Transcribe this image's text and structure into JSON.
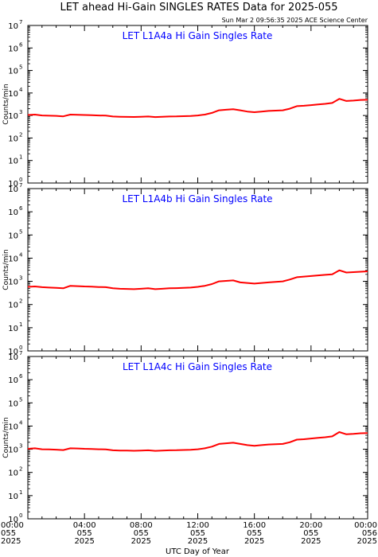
{
  "title": "LET ahead Hi-Gain SINGLES RATES Data for 2025-055",
  "timestamp": "Sun Mar  2 09:56:35 2025 ACE Science Center",
  "xlabel": "UTC Day of Year",
  "series_color": "#ff0000",
  "panel_label_color": "#0000ff",
  "chart_data": [
    {
      "type": "line",
      "title": "LET L1A4a Hi Gain Singles Rate",
      "ylabel": "Counts/min",
      "yscale": "log",
      "ylim": [
        1,
        10000000
      ],
      "xlim": [
        0,
        24
      ],
      "x_units": "hours UTC on day 055 of 2025",
      "x": [
        0,
        0.5,
        1,
        1.5,
        2,
        2.5,
        3,
        3.5,
        4,
        4.5,
        5,
        5.5,
        6,
        6.5,
        7,
        7.5,
        8,
        8.5,
        9,
        9.5,
        10,
        10.5,
        11,
        11.5,
        12,
        12.5,
        13,
        13.5,
        14,
        14.5,
        15,
        15.5,
        16,
        16.5,
        17,
        17.5,
        18,
        18.5,
        19,
        19.5,
        20,
        20.5,
        21,
        21.5,
        22,
        22.5,
        23,
        23.5,
        24
      ],
      "values": [
        1050,
        1100,
        1000,
        980,
        960,
        920,
        1100,
        1080,
        1050,
        1030,
        1000,
        990,
        900,
        880,
        870,
        860,
        880,
        900,
        850,
        880,
        900,
        910,
        930,
        950,
        1000,
        1100,
        1300,
        1700,
        1800,
        1900,
        1700,
        1500,
        1400,
        1500,
        1600,
        1650,
        1700,
        2000,
        2600,
        2700,
        2900,
        3100,
        3300,
        3600,
        5500,
        4400,
        4600,
        4900,
        5000
      ]
    },
    {
      "type": "line",
      "title": "LET L1A4b Hi Gain Singles Rate",
      "ylabel": "Counts/min",
      "yscale": "log",
      "ylim": [
        1,
        10000000
      ],
      "xlim": [
        0,
        24
      ],
      "x_units": "hours UTC on day 055 of 2025",
      "x": [
        0,
        0.5,
        1,
        1.5,
        2,
        2.5,
        3,
        3.5,
        4,
        4.5,
        5,
        5.5,
        6,
        6.5,
        7,
        7.5,
        8,
        8.5,
        9,
        9.5,
        10,
        10.5,
        11,
        11.5,
        12,
        12.5,
        13,
        13.5,
        14,
        14.5,
        15,
        15.5,
        16,
        16.5,
        17,
        17.5,
        18,
        18.5,
        19,
        19.5,
        20,
        20.5,
        21,
        21.5,
        22,
        22.5,
        23,
        23.5,
        24
      ],
      "values": [
        580,
        600,
        560,
        540,
        520,
        500,
        640,
        620,
        600,
        590,
        570,
        560,
        500,
        480,
        470,
        460,
        480,
        500,
        460,
        480,
        500,
        510,
        520,
        540,
        580,
        640,
        760,
        1000,
        1050,
        1100,
        900,
        850,
        800,
        850,
        900,
        950,
        1000,
        1200,
        1500,
        1600,
        1700,
        1800,
        1900,
        2000,
        3000,
        2400,
        2500,
        2600,
        2700
      ]
    },
    {
      "type": "line",
      "title": "LET L1A4c Hi Gain Singles Rate",
      "ylabel": "Counts/min",
      "yscale": "log",
      "ylim": [
        1,
        10000000
      ],
      "xlim": [
        0,
        24
      ],
      "x_units": "hours UTC on day 055 of 2025",
      "x": [
        0,
        0.5,
        1,
        1.5,
        2,
        2.5,
        3,
        3.5,
        4,
        4.5,
        5,
        5.5,
        6,
        6.5,
        7,
        7.5,
        8,
        8.5,
        9,
        9.5,
        10,
        10.5,
        11,
        11.5,
        12,
        12.5,
        13,
        13.5,
        14,
        14.5,
        15,
        15.5,
        16,
        16.5,
        17,
        17.5,
        18,
        18.5,
        19,
        19.5,
        20,
        20.5,
        21,
        21.5,
        22,
        22.5,
        23,
        23.5,
        24
      ],
      "values": [
        1050,
        1100,
        1000,
        980,
        960,
        920,
        1100,
        1080,
        1050,
        1030,
        1000,
        990,
        900,
        880,
        870,
        860,
        880,
        900,
        850,
        880,
        900,
        910,
        930,
        950,
        1000,
        1100,
        1300,
        1700,
        1800,
        1900,
        1700,
        1500,
        1400,
        1500,
        1600,
        1650,
        1700,
        2000,
        2600,
        2700,
        2900,
        3100,
        3300,
        3600,
        5500,
        4400,
        4600,
        4900,
        5000
      ]
    }
  ],
  "y_ticks": [
    {
      "base": "10",
      "exp": "0",
      "value": 1
    },
    {
      "base": "10",
      "exp": "1",
      "value": 10
    },
    {
      "base": "10",
      "exp": "2",
      "value": 100
    },
    {
      "base": "10",
      "exp": "3",
      "value": 1000
    },
    {
      "base": "10",
      "exp": "4",
      "value": 10000
    },
    {
      "base": "10",
      "exp": "5",
      "value": 100000
    },
    {
      "base": "10",
      "exp": "6",
      "value": 1000000
    },
    {
      "base": "10",
      "exp": "7",
      "value": 10000000
    }
  ],
  "x_ticks": [
    {
      "hour": 0,
      "time": "00:00",
      "doy": "055",
      "year": "2025"
    },
    {
      "hour": 4,
      "time": "04:00",
      "doy": "055",
      "year": "2025"
    },
    {
      "hour": 8,
      "time": "08:00",
      "doy": "055",
      "year": "2025"
    },
    {
      "hour": 12,
      "time": "12:00",
      "doy": "055",
      "year": "2025"
    },
    {
      "hour": 16,
      "time": "16:00",
      "doy": "055",
      "year": "2025"
    },
    {
      "hour": 20,
      "time": "20:00",
      "doy": "055",
      "year": "2025"
    },
    {
      "hour": 24,
      "time": "00:00",
      "doy": "056",
      "year": "2025"
    }
  ]
}
